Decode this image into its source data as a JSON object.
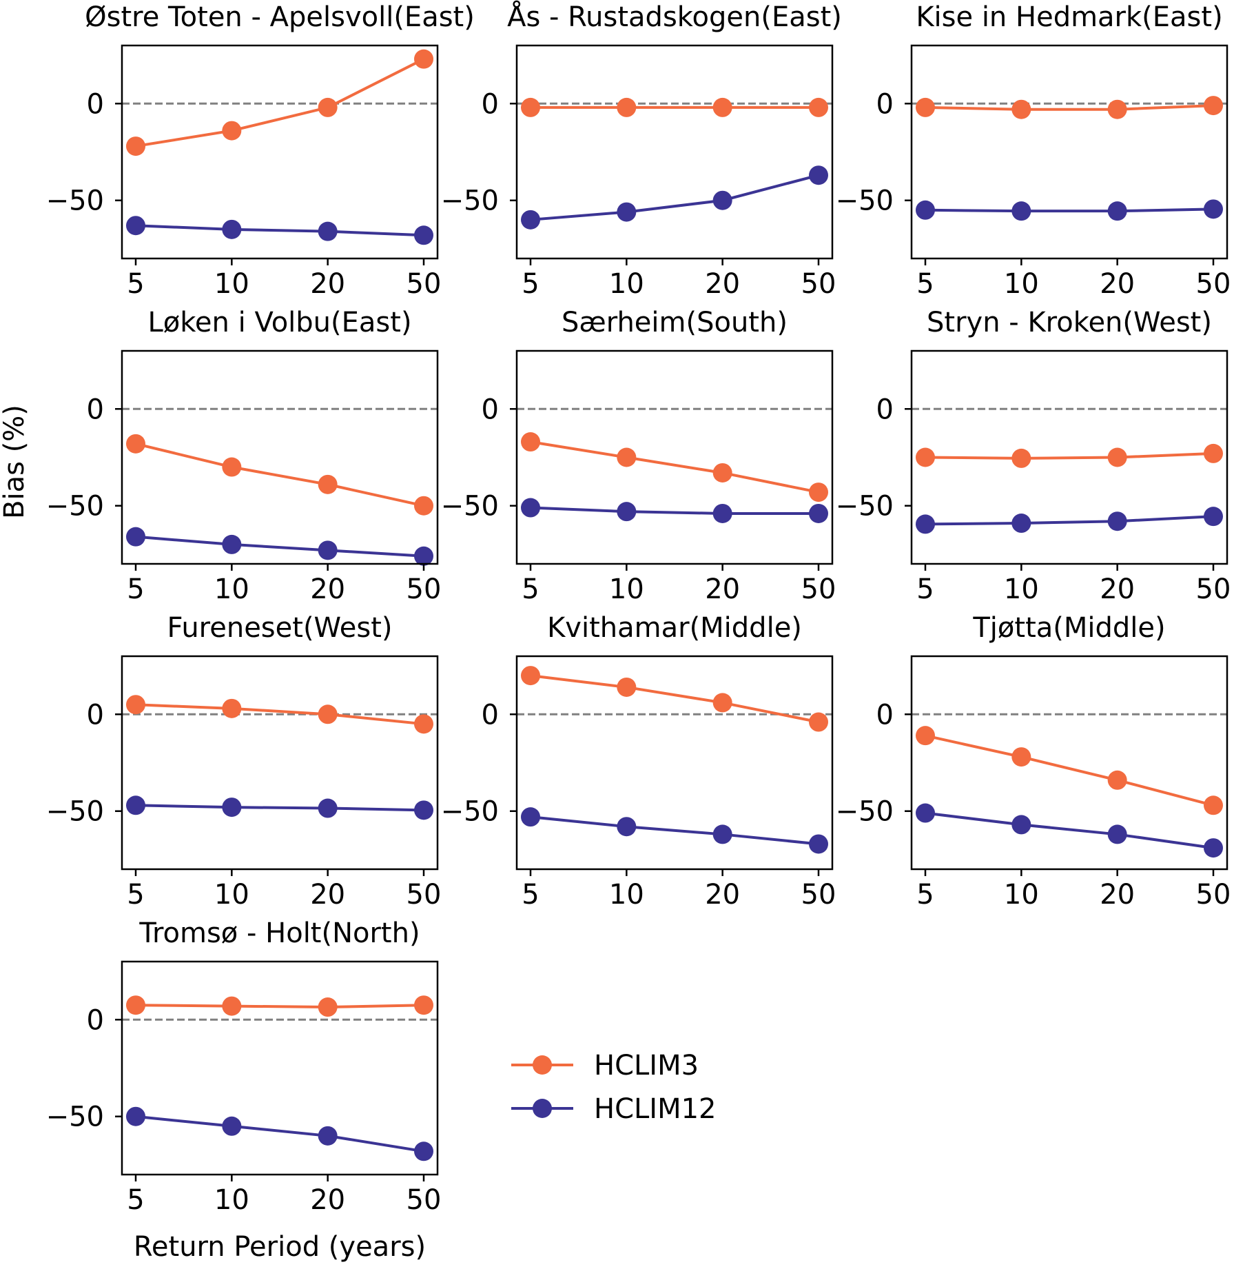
{
  "chart_data": {
    "type": "line",
    "ylabel": "Bias (%)",
    "xlabel": "Return Period (years)",
    "x": [
      5,
      10,
      20,
      50
    ],
    "x_tick_labels": [
      "5",
      "10",
      "20",
      "50"
    ],
    "y_ticks": [
      0,
      -50
    ],
    "y_tick_labels": [
      "0",
      "−50"
    ],
    "ylim": [
      -80,
      30
    ],
    "reference_line": {
      "y": 0,
      "style": "dashed",
      "color": "#808080"
    },
    "series_styles": [
      {
        "name": "HCLIM3",
        "color": "#F26B3F"
      },
      {
        "name": "HCLIM12",
        "color": "#3B3494"
      }
    ],
    "legend": {
      "placement": "lower-center",
      "entries": [
        "HCLIM3",
        "HCLIM12"
      ]
    },
    "panels": [
      {
        "title": "Østre Toten - Apelsvoll(East)",
        "series": [
          {
            "name": "HCLIM3",
            "values": [
              -22,
              -14,
              -2,
              23
            ]
          },
          {
            "name": "HCLIM12",
            "values": [
              -63,
              -65,
              -66,
              -68
            ]
          }
        ]
      },
      {
        "title": "Ås - Rustadskogen(East)",
        "series": [
          {
            "name": "HCLIM3",
            "values": [
              -2,
              -2,
              -2,
              -2
            ]
          },
          {
            "name": "HCLIM12",
            "values": [
              -60,
              -56,
              -50,
              -37
            ]
          }
        ]
      },
      {
        "title": "Kise in Hedmark(East)",
        "series": [
          {
            "name": "HCLIM3",
            "values": [
              -2,
              -3,
              -3,
              -1
            ]
          },
          {
            "name": "HCLIM12",
            "values": [
              -55,
              -55.5,
              -55.5,
              -54.5
            ]
          }
        ]
      },
      {
        "title": "Løken i Volbu(East)",
        "series": [
          {
            "name": "HCLIM3",
            "values": [
              -18,
              -30,
              -39,
              -50
            ]
          },
          {
            "name": "HCLIM12",
            "values": [
              -66,
              -70,
              -73,
              -76
            ]
          }
        ]
      },
      {
        "title": "Særheim(South)",
        "series": [
          {
            "name": "HCLIM3",
            "values": [
              -17,
              -25,
              -33,
              -43
            ]
          },
          {
            "name": "HCLIM12",
            "values": [
              -51,
              -53,
              -54,
              -54
            ]
          }
        ]
      },
      {
        "title": "Stryn - Kroken(West)",
        "series": [
          {
            "name": "HCLIM3",
            "values": [
              -25,
              -25.5,
              -25,
              -23
            ]
          },
          {
            "name": "HCLIM12",
            "values": [
              -59.5,
              -59,
              -58,
              -55.5
            ]
          }
        ]
      },
      {
        "title": "Fureneset(West)",
        "series": [
          {
            "name": "HCLIM3",
            "values": [
              5,
              3,
              0,
              -5
            ]
          },
          {
            "name": "HCLIM12",
            "values": [
              -47,
              -48,
              -48.5,
              -49.5
            ]
          }
        ]
      },
      {
        "title": "Kvithamar(Middle)",
        "series": [
          {
            "name": "HCLIM3",
            "values": [
              20,
              14,
              6,
              -4
            ]
          },
          {
            "name": "HCLIM12",
            "values": [
              -53,
              -58,
              -62,
              -67
            ]
          }
        ]
      },
      {
        "title": "Tjøtta(Middle)",
        "series": [
          {
            "name": "HCLIM3",
            "values": [
              -11,
              -22,
              -34,
              -47
            ]
          },
          {
            "name": "HCLIM12",
            "values": [
              -51,
              -57,
              -62,
              -69
            ]
          }
        ]
      },
      {
        "title": "Tromsø - Holt(North)",
        "series": [
          {
            "name": "HCLIM3",
            "values": [
              7.5,
              7,
              6.5,
              7.5
            ]
          },
          {
            "name": "HCLIM12",
            "values": [
              -50,
              -55,
              -60,
              -68
            ]
          }
        ]
      }
    ]
  }
}
